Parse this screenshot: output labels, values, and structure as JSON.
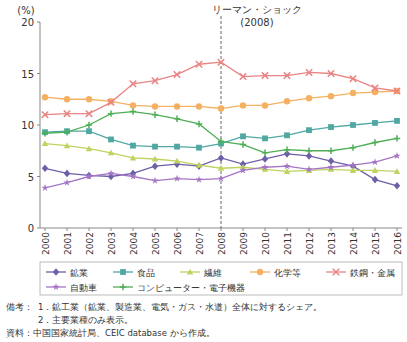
{
  "chart_data": {
    "type": "line",
    "y_label": "(%)",
    "categories": [
      "2000",
      "2001",
      "2002",
      "2003",
      "2004",
      "2005",
      "2006",
      "2007",
      "2008",
      "2009",
      "2010",
      "2011",
      "2012",
      "2013",
      "2014",
      "2015",
      "2016"
    ],
    "ylim": [
      0,
      20
    ],
    "yticks": [
      0,
      5,
      10,
      15,
      20
    ],
    "grid": false,
    "legend": "bottom",
    "annotation": {
      "x": "2008",
      "lines": [
        "リーマン・ショック",
        "(2008)"
      ],
      "line_style": "dashed"
    },
    "series": [
      {
        "name": "鉱業",
        "color": "#6f5fa8",
        "marker": "diamond",
        "values": [
          5.8,
          5.3,
          5.1,
          5.0,
          5.3,
          6.0,
          6.2,
          6.0,
          6.8,
          6.2,
          6.7,
          7.2,
          7.0,
          6.5,
          6.0,
          4.7,
          4.1
        ]
      },
      {
        "name": "食品",
        "color": "#4fa8a2",
        "marker": "square",
        "values": [
          9.3,
          9.4,
          9.4,
          8.6,
          8.0,
          7.9,
          7.9,
          7.8,
          8.2,
          8.9,
          8.7,
          9.0,
          9.5,
          9.8,
          10.0,
          10.2,
          10.4
        ]
      },
      {
        "name": "繊維",
        "color": "#bcd35e",
        "marker": "triangle",
        "values": [
          8.2,
          8.0,
          7.7,
          7.3,
          6.8,
          6.7,
          6.5,
          6.1,
          5.8,
          5.9,
          5.7,
          5.5,
          5.6,
          5.7,
          5.6,
          5.6,
          5.5
        ]
      },
      {
        "name": "化学等",
        "color": "#f5b062",
        "marker": "circle",
        "values": [
          12.7,
          12.5,
          12.5,
          12.3,
          11.9,
          11.8,
          11.8,
          11.8,
          11.6,
          11.9,
          11.9,
          12.3,
          12.6,
          12.8,
          13.1,
          13.2,
          13.3
        ]
      },
      {
        "name": "鉄鋼・金属",
        "color": "#e98484",
        "marker": "x",
        "values": [
          11.0,
          11.1,
          11.1,
          12.2,
          14.0,
          14.3,
          14.9,
          15.9,
          16.1,
          14.7,
          14.8,
          14.8,
          15.1,
          15.0,
          14.5,
          13.6,
          13.3
        ]
      },
      {
        "name": "自動車",
        "color": "#a574c4",
        "marker": "star",
        "values": [
          3.9,
          4.4,
          5.0,
          5.3,
          5.0,
          4.6,
          4.8,
          4.7,
          4.8,
          5.6,
          5.9,
          6.0,
          5.7,
          5.9,
          6.1,
          6.4,
          7.0
        ]
      },
      {
        "name": "コンピューター・電子機器",
        "color": "#4fae55",
        "marker": "plus",
        "values": [
          9.2,
          9.3,
          10.0,
          11.1,
          11.3,
          11.0,
          10.6,
          10.1,
          8.4,
          8.1,
          7.3,
          7.6,
          7.5,
          7.5,
          7.8,
          8.3,
          8.7
        ]
      }
    ],
    "notes_label": "備考：",
    "notes": [
      "1．鉱工業（鉱業、製造業、電気・ガス・水道）全体に対するシェア。",
      "2．主要業種のみ表示。"
    ],
    "source": "資料：中国国家統計局、CEIC database から作成。"
  }
}
